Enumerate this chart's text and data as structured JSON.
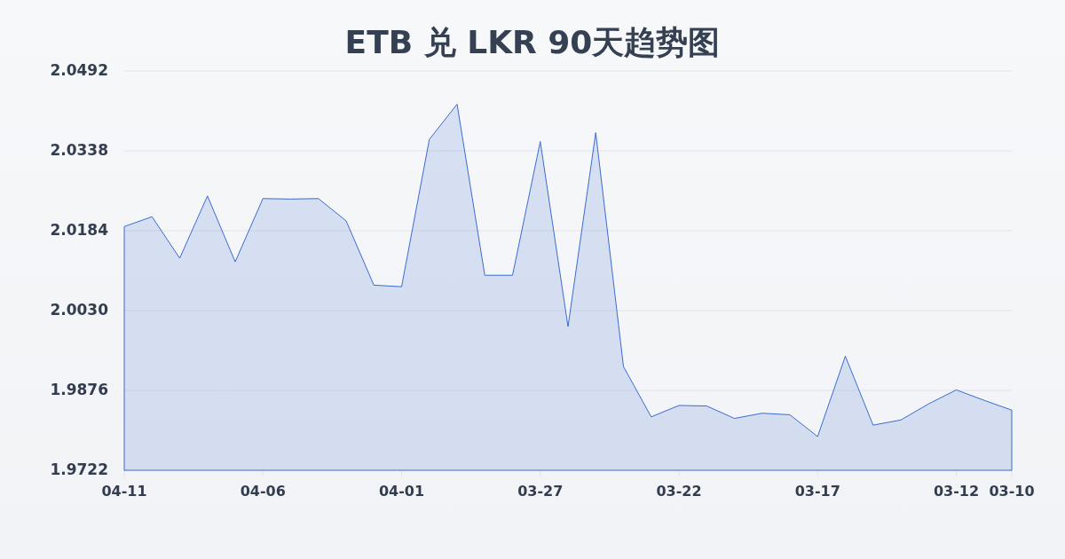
{
  "chart_data": {
    "type": "area",
    "title": "ETB 兑 LKR 90天趋势图",
    "categories": [
      "04-11",
      null,
      null,
      null,
      null,
      "04-06",
      null,
      null,
      null,
      null,
      "04-01",
      null,
      null,
      null,
      null,
      "03-27",
      null,
      null,
      null,
      null,
      "03-22",
      null,
      null,
      null,
      null,
      "03-17",
      null,
      null,
      null,
      null,
      "03-12",
      null,
      "03-10"
    ],
    "values": [
      2.0192,
      2.0211,
      2.0131,
      2.0251,
      2.0124,
      2.0246,
      2.0245,
      2.0246,
      2.0203,
      2.0079,
      2.0076,
      2.036,
      2.0428,
      2.0098,
      2.0098,
      2.0356,
      1.9999,
      2.0373,
      1.9922,
      1.9825,
      1.9847,
      1.9846,
      1.9822,
      1.9832,
      1.9829,
      1.9787,
      1.9942,
      1.9809,
      1.9819,
      1.985,
      1.9877,
      1.9857,
      1.9838
    ],
    "color": "#3b6bd0",
    "ylim": [
      1.9722,
      2.0492
    ],
    "yticks": [
      1.9722,
      1.9876,
      {
        "value": 2.003,
        "label": "2.0030"
      },
      2.0184,
      2.0338,
      2.0492
    ],
    "grid": "y"
  }
}
